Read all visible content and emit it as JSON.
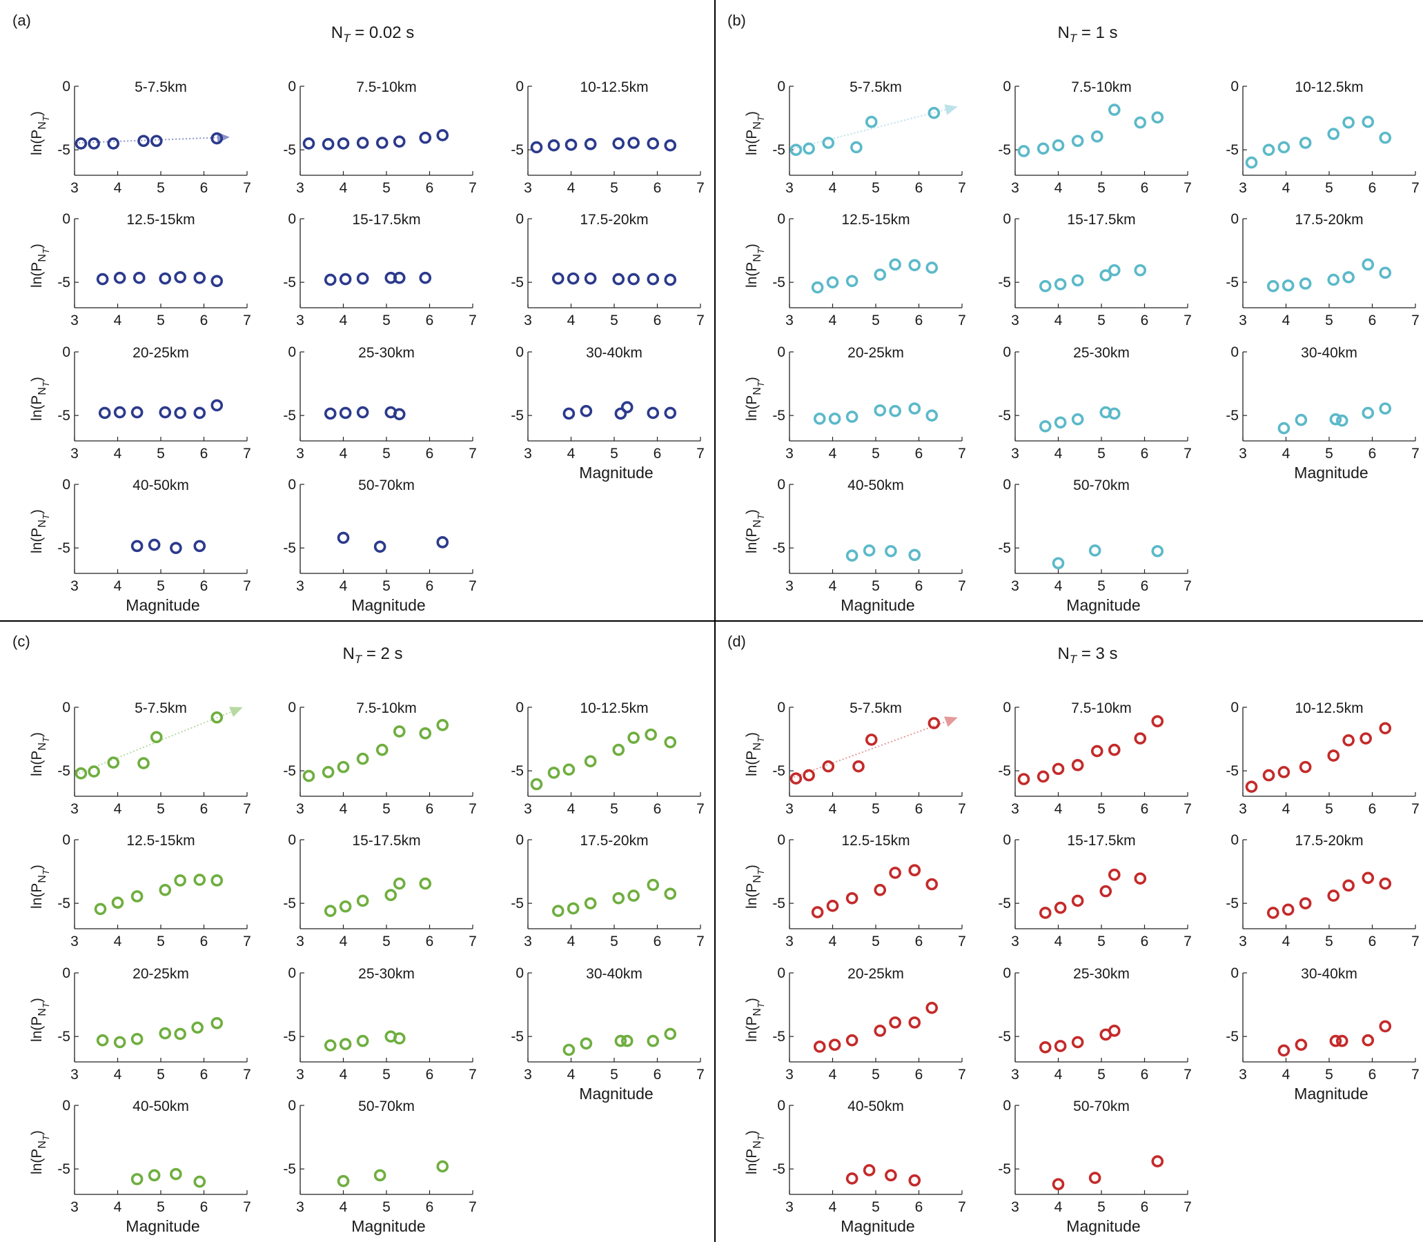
{
  "figure": {
    "sub_sup": "T",
    "xlabel": "Magnitude",
    "ylabel_main": "ln(P",
    "ylabel_sub": "N",
    "ylabel_close": ")",
    "xticks": [
      "3",
      "4",
      "5",
      "6",
      "7"
    ],
    "yticks": [
      "0",
      "-5"
    ]
  },
  "chart_data": [
    {
      "type": "scatter",
      "panel_label": "(a)",
      "title_pre": "N",
      "title_sub": "T",
      "title_post": " = 0.02 s",
      "color": "#2b3a8c",
      "arrow_color": "#8a93c9",
      "xlim": [
        3,
        7
      ],
      "ylim": [
        -7,
        0
      ],
      "trend": {
        "x": [
          3.1,
          6.6
        ],
        "y": [
          -4.45,
          -4.0
        ]
      },
      "subplots": [
        {
          "title": "5-7.5km",
          "x": [
            3.15,
            3.45,
            3.9,
            4.6,
            4.9,
            6.3
          ],
          "y": [
            -4.5,
            -4.5,
            -4.5,
            -4.3,
            -4.3,
            -4.1
          ]
        },
        {
          "title": "7.5-10km",
          "x": [
            3.2,
            3.65,
            4.0,
            4.45,
            4.9,
            5.3,
            5.9,
            6.3
          ],
          "y": [
            -4.5,
            -4.55,
            -4.5,
            -4.45,
            -4.45,
            -4.35,
            -4.05,
            -3.85
          ]
        },
        {
          "title": "10-12.5km",
          "x": [
            3.2,
            3.6,
            4.0,
            4.45,
            5.1,
            5.45,
            5.9,
            6.3
          ],
          "y": [
            -4.8,
            -4.65,
            -4.6,
            -4.55,
            -4.5,
            -4.45,
            -4.5,
            -4.65
          ]
        },
        {
          "title": "12.5-15km",
          "x": [
            3.65,
            4.05,
            4.5,
            5.1,
            5.45,
            5.9,
            6.3
          ],
          "y": [
            -4.75,
            -4.65,
            -4.65,
            -4.7,
            -4.6,
            -4.65,
            -4.9
          ]
        },
        {
          "title": "15-17.5km",
          "x": [
            3.7,
            4.05,
            4.45,
            5.1,
            5.3,
            5.9
          ],
          "y": [
            -4.8,
            -4.75,
            -4.7,
            -4.65,
            -4.65,
            -4.65
          ]
        },
        {
          "title": "17.5-20km",
          "x": [
            3.7,
            4.05,
            4.45,
            5.1,
            5.45,
            5.9,
            6.3
          ],
          "y": [
            -4.7,
            -4.7,
            -4.7,
            -4.75,
            -4.75,
            -4.75,
            -4.8
          ]
        },
        {
          "title": "20-25km",
          "x": [
            3.7,
            4.05,
            4.45,
            5.1,
            5.45,
            5.9,
            6.3
          ],
          "y": [
            -4.8,
            -4.75,
            -4.75,
            -4.75,
            -4.8,
            -4.8,
            -4.2
          ]
        },
        {
          "title": "25-30km",
          "x": [
            3.7,
            4.05,
            4.45,
            5.1,
            5.3
          ],
          "y": [
            -4.85,
            -4.8,
            -4.75,
            -4.75,
            -4.9
          ]
        },
        {
          "title": "30-40km",
          "x": [
            3.95,
            4.35,
            5.15,
            5.3,
            5.9,
            6.3
          ],
          "y": [
            -4.85,
            -4.65,
            -4.85,
            -4.35,
            -4.8,
            -4.8
          ]
        },
        {
          "title": "40-50km",
          "x": [
            4.45,
            4.85,
            5.35,
            5.9
          ],
          "y": [
            -4.85,
            -4.75,
            -5.0,
            -4.85
          ]
        },
        {
          "title": "50-70km",
          "x": [
            4.0,
            4.85,
            6.3
          ],
          "y": [
            -4.2,
            -4.9,
            -4.55
          ]
        }
      ]
    },
    {
      "type": "scatter",
      "panel_label": "(b)",
      "title_pre": "N",
      "title_sub": "T",
      "title_post": " = 1 s",
      "color": "#5bb9c9",
      "arrow_color": "#bde2ea",
      "xlim": [
        3,
        7
      ],
      "ylim": [
        -7,
        0
      ],
      "trend": {
        "x": [
          3.1,
          6.9
        ],
        "y": [
          -4.9,
          -1.6
        ]
      },
      "subplots": [
        {
          "title": "5-7.5km",
          "x": [
            3.15,
            3.45,
            3.9,
            4.55,
            4.9,
            6.35
          ],
          "y": [
            -5.0,
            -4.9,
            -4.45,
            -4.8,
            -2.8,
            -2.1
          ]
        },
        {
          "title": "7.5-10km",
          "x": [
            3.2,
            3.65,
            4.0,
            4.45,
            4.9,
            5.3,
            5.9,
            6.3
          ],
          "y": [
            -5.1,
            -4.9,
            -4.65,
            -4.3,
            -3.95,
            -1.85,
            -2.85,
            -2.45
          ]
        },
        {
          "title": "10-12.5km",
          "x": [
            3.2,
            3.6,
            3.95,
            4.45,
            5.1,
            5.45,
            5.9,
            6.3
          ],
          "y": [
            -6.0,
            -5.0,
            -4.8,
            -4.45,
            -3.75,
            -2.85,
            -2.8,
            -4.05
          ]
        },
        {
          "title": "12.5-15km",
          "x": [
            3.65,
            4.0,
            4.45,
            5.1,
            5.45,
            5.9,
            6.3
          ],
          "y": [
            -5.4,
            -5.0,
            -4.9,
            -4.4,
            -3.6,
            -3.65,
            -3.85
          ]
        },
        {
          "title": "15-17.5km",
          "x": [
            3.7,
            4.05,
            4.45,
            5.1,
            5.3,
            5.9
          ],
          "y": [
            -5.3,
            -5.15,
            -4.85,
            -4.45,
            -4.05,
            -4.05
          ]
        },
        {
          "title": "17.5-20km",
          "x": [
            3.7,
            4.05,
            4.45,
            5.1,
            5.45,
            5.9,
            6.3
          ],
          "y": [
            -5.3,
            -5.25,
            -5.1,
            -4.8,
            -4.6,
            -3.6,
            -4.25
          ]
        },
        {
          "title": "20-25km",
          "x": [
            3.7,
            4.05,
            4.45,
            5.1,
            5.45,
            5.9,
            6.3
          ],
          "y": [
            -5.25,
            -5.25,
            -5.1,
            -4.6,
            -4.65,
            -4.45,
            -5.0
          ]
        },
        {
          "title": "25-30km",
          "x": [
            3.7,
            4.05,
            4.45,
            5.1,
            5.3
          ],
          "y": [
            -5.85,
            -5.55,
            -5.3,
            -4.75,
            -4.85
          ]
        },
        {
          "title": "30-40km",
          "x": [
            3.95,
            4.35,
            5.15,
            5.3,
            5.9,
            6.3
          ],
          "y": [
            -6.0,
            -5.35,
            -5.3,
            -5.4,
            -4.8,
            -4.45
          ]
        },
        {
          "title": "40-50km",
          "x": [
            4.45,
            4.85,
            5.35,
            5.9
          ],
          "y": [
            -5.6,
            -5.2,
            -5.25,
            -5.55
          ]
        },
        {
          "title": "50-70km",
          "x": [
            4.0,
            4.85,
            6.3
          ],
          "y": [
            -6.2,
            -5.2,
            -5.25
          ]
        }
      ]
    },
    {
      "type": "scatter",
      "panel_label": "(c)",
      "title_pre": "N",
      "title_sub": "T",
      "title_post": " = 2 s",
      "color": "#6fae3f",
      "arrow_color": "#b8d9a3",
      "xlim": [
        3,
        7
      ],
      "ylim": [
        -7,
        0
      ],
      "trend": {
        "x": [
          3.1,
          6.9
        ],
        "y": [
          -5.2,
          0.0
        ]
      },
      "subplots": [
        {
          "title": "5-7.5km",
          "x": [
            3.15,
            3.45,
            3.9,
            4.6,
            4.9,
            6.3
          ],
          "y": [
            -5.2,
            -5.05,
            -4.35,
            -4.4,
            -2.35,
            -0.8
          ]
        },
        {
          "title": "7.5-10km",
          "x": [
            3.2,
            3.65,
            4.0,
            4.45,
            4.9,
            5.3,
            5.9,
            6.3
          ],
          "y": [
            -5.4,
            -5.1,
            -4.7,
            -4.05,
            -3.35,
            -1.9,
            -2.05,
            -1.4
          ]
        },
        {
          "title": "10-12.5km",
          "x": [
            3.2,
            3.6,
            3.95,
            4.45,
            5.1,
            5.45,
            5.85,
            6.3
          ],
          "y": [
            -6.05,
            -5.15,
            -4.9,
            -4.25,
            -3.35,
            -2.4,
            -2.15,
            -2.75
          ]
        },
        {
          "title": "12.5-15km",
          "x": [
            3.6,
            4.0,
            4.45,
            5.1,
            5.45,
            5.9,
            6.3
          ],
          "y": [
            -5.45,
            -4.95,
            -4.45,
            -3.95,
            -3.2,
            -3.15,
            -3.2
          ]
        },
        {
          "title": "15-17.5km",
          "x": [
            3.7,
            4.05,
            4.45,
            5.1,
            5.3,
            5.9
          ],
          "y": [
            -5.6,
            -5.25,
            -4.8,
            -4.35,
            -3.45,
            -3.45
          ]
        },
        {
          "title": "17.5-20km",
          "x": [
            3.7,
            4.05,
            4.45,
            5.1,
            5.45,
            5.9,
            6.3
          ],
          "y": [
            -5.6,
            -5.4,
            -5.0,
            -4.6,
            -4.4,
            -3.55,
            -4.25
          ]
        },
        {
          "title": "20-25km",
          "x": [
            3.65,
            4.05,
            4.45,
            5.1,
            5.45,
            5.85,
            6.3
          ],
          "y": [
            -5.3,
            -5.45,
            -5.2,
            -4.75,
            -4.8,
            -4.3,
            -3.95
          ]
        },
        {
          "title": "25-30km",
          "x": [
            3.7,
            4.05,
            4.45,
            5.1,
            5.3
          ],
          "y": [
            -5.7,
            -5.6,
            -5.35,
            -5.0,
            -5.15
          ]
        },
        {
          "title": "30-40km",
          "x": [
            3.95,
            4.35,
            5.15,
            5.3,
            5.9,
            6.3
          ],
          "y": [
            -6.05,
            -5.55,
            -5.35,
            -5.35,
            -5.35,
            -4.8
          ]
        },
        {
          "title": "40-50km",
          "x": [
            4.45,
            4.85,
            5.35,
            5.9
          ],
          "y": [
            -5.8,
            -5.5,
            -5.4,
            -6.0
          ]
        },
        {
          "title": "50-70km",
          "x": [
            4.0,
            4.85,
            6.3
          ],
          "y": [
            -5.95,
            -5.5,
            -4.8
          ]
        }
      ]
    },
    {
      "type": "scatter",
      "panel_label": "(d)",
      "title_pre": "N",
      "title_sub": "T",
      "title_post": " = 3 s",
      "color": "#c42a2a",
      "arrow_color": "#e59a9a",
      "xlim": [
        3,
        7
      ],
      "ylim": [
        -7,
        0
      ],
      "trend": {
        "x": [
          3.1,
          6.9
        ],
        "y": [
          -5.5,
          -0.8
        ]
      },
      "subplots": [
        {
          "title": "5-7.5km",
          "x": [
            3.15,
            3.45,
            3.9,
            4.6,
            4.9,
            6.35
          ],
          "y": [
            -5.6,
            -5.35,
            -4.65,
            -4.65,
            -2.55,
            -1.25
          ]
        },
        {
          "title": "7.5-10km",
          "x": [
            3.2,
            3.65,
            4.0,
            4.45,
            4.9,
            5.3,
            5.9,
            6.3
          ],
          "y": [
            -5.65,
            -5.45,
            -4.85,
            -4.55,
            -3.45,
            -3.35,
            -2.45,
            -1.1
          ]
        },
        {
          "title": "10-12.5km",
          "x": [
            3.2,
            3.6,
            3.95,
            4.45,
            5.1,
            5.45,
            5.85,
            6.3
          ],
          "y": [
            -6.25,
            -5.35,
            -5.1,
            -4.7,
            -3.8,
            -2.6,
            -2.45,
            -1.65
          ]
        },
        {
          "title": "12.5-15km",
          "x": [
            3.65,
            4.0,
            4.45,
            5.1,
            5.45,
            5.9,
            6.3
          ],
          "y": [
            -5.7,
            -5.2,
            -4.6,
            -3.95,
            -2.6,
            -2.4,
            -3.5
          ]
        },
        {
          "title": "15-17.5km",
          "x": [
            3.7,
            4.05,
            4.45,
            5.1,
            5.3,
            5.9
          ],
          "y": [
            -5.75,
            -5.35,
            -4.8,
            -4.05,
            -2.75,
            -3.05
          ]
        },
        {
          "title": "17.5-20km",
          "x": [
            3.7,
            4.05,
            4.45,
            5.1,
            5.45,
            5.9,
            6.3
          ],
          "y": [
            -5.75,
            -5.5,
            -5.0,
            -4.4,
            -3.6,
            -3.0,
            -3.45
          ]
        },
        {
          "title": "20-25km",
          "x": [
            3.7,
            4.05,
            4.45,
            5.1,
            5.45,
            5.9,
            6.3
          ],
          "y": [
            -5.8,
            -5.65,
            -5.3,
            -4.55,
            -3.9,
            -3.9,
            -2.75
          ]
        },
        {
          "title": "25-30km",
          "x": [
            3.7,
            4.05,
            4.45,
            5.1,
            5.3
          ],
          "y": [
            -5.85,
            -5.75,
            -5.45,
            -4.85,
            -4.55
          ]
        },
        {
          "title": "30-40km",
          "x": [
            3.95,
            4.35,
            5.15,
            5.3,
            5.9,
            6.3
          ],
          "y": [
            -6.1,
            -5.65,
            -5.35,
            -5.35,
            -5.3,
            -4.2
          ]
        },
        {
          "title": "40-50km",
          "x": [
            4.45,
            4.85,
            5.35,
            5.9
          ],
          "y": [
            -5.75,
            -5.1,
            -5.5,
            -5.9
          ]
        },
        {
          "title": "50-70km",
          "x": [
            4.0,
            4.85,
            6.3
          ],
          "y": [
            -6.2,
            -5.7,
            -4.4
          ]
        }
      ]
    }
  ]
}
